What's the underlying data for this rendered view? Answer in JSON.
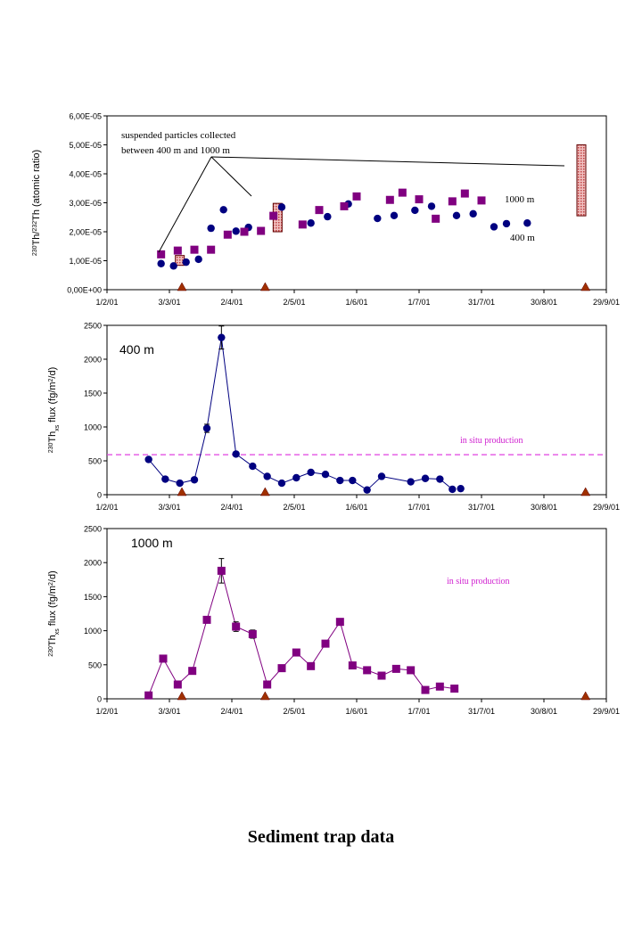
{
  "caption": "Sediment trap data",
  "chart_data": [
    {
      "type": "line",
      "ylabel_prefix": "230",
      "ylabel_main1": "Th/",
      "ylabel_sup2": "232",
      "ylabel_main2": "Th (atomic ratio)",
      "yticks": [
        "0,00E+00",
        "1,00E-05",
        "2,00E-05",
        "3,00E-05",
        "4,00E-05",
        "5,00E-05",
        "6,00E-05"
      ],
      "ylim": [
        0,
        6e-05
      ],
      "xticks": [
        "1/2/01",
        "3/3/01",
        "2/4/01",
        "2/5/01",
        "1/6/01",
        "1/7/01",
        "31/7/01",
        "30/8/01",
        "29/9/01"
      ],
      "annotation_line1": "suspended particles collected",
      "annotation_line2": "between 400 m and 1000 m",
      "label_1000": "1000 m",
      "label_400": "400 m",
      "series": [
        {
          "name": "400 m",
          "color": "#000080",
          "marker": "circle",
          "x": [
            26,
            32,
            38,
            44,
            50,
            56,
            62,
            68,
            84,
            98,
            106,
            116,
            130,
            138,
            148,
            156,
            168,
            176,
            186,
            192,
            202
          ],
          "y": [
            9e-06,
            8.2e-06,
            9.5e-06,
            1.05e-05,
            2.12e-05,
            2.76e-05,
            2.02e-05,
            2.15e-05,
            2.85e-05,
            2.3e-05,
            2.52e-05,
            2.96e-05,
            2.46e-05,
            2.56e-05,
            2.74e-05,
            2.88e-05,
            2.56e-05,
            2.62e-05,
            2.17e-05,
            2.28e-05,
            2.3e-05
          ]
        },
        {
          "name": "1000 m",
          "color": "#800080",
          "marker": "square",
          "x": [
            26,
            34,
            42,
            50,
            58,
            66,
            74,
            80,
            94,
            102,
            114,
            120,
            136,
            142,
            150,
            158,
            166,
            172,
            180
          ],
          "y": [
            1.22e-05,
            1.35e-05,
            1.38e-05,
            1.38e-05,
            1.9e-05,
            2e-05,
            2.03e-05,
            2.55e-05,
            2.25e-05,
            2.75e-05,
            2.88e-05,
            3.22e-05,
            3.1e-05,
            3.35e-05,
            3.12e-05,
            2.45e-05,
            3.05e-05,
            3.32e-05,
            3.08e-05
          ]
        }
      ],
      "suspended_bars": [
        {
          "x": 35,
          "y0": 8.4e-06,
          "y1": 1.18e-05
        },
        {
          "x": 82,
          "y0": 2e-05,
          "y1": 2.98e-05
        },
        {
          "x": 228,
          "y0": 2.55e-05,
          "y1": 5e-05
        }
      ],
      "triangles_x": [
        36,
        76,
        230
      ]
    },
    {
      "type": "line",
      "title": "400 m",
      "ylabel_main1": "230",
      "ylabel_main2": "Th",
      "ylabel_sub": "xs",
      "ylabel_main3": " flux (fg/m",
      "ylabel_sup": "2",
      "ylabel_main4": "/d)",
      "yticks": [
        "0",
        "500",
        "1000",
        "1500",
        "2000",
        "2500"
      ],
      "ylim": [
        0,
        2500
      ],
      "xticks": [
        "1/2/01",
        "3/3/01",
        "2/4/01",
        "2/5/01",
        "1/6/01",
        "1/7/01",
        "31/7/01",
        "30/8/01",
        "29/9/01"
      ],
      "ref_label": "in situ production",
      "ref_value": 590,
      "series": [
        {
          "name": "400 m",
          "color": "#000080",
          "marker": "circle",
          "x": [
            20,
            28,
            35,
            42,
            48,
            55,
            62,
            70,
            77,
            84,
            91,
            98,
            105,
            112,
            118,
            125,
            132,
            146,
            153,
            160,
            166
          ],
          "y": [
            520,
            230,
            170,
            220,
            980,
            2320,
            600,
            420,
            270,
            170,
            250,
            330,
            300,
            210,
            210,
            70,
            270,
            190,
            240,
            230,
            80
          ],
          "err": [
            0,
            0,
            0,
            0,
            60,
            170,
            0,
            0,
            0,
            0,
            0,
            0,
            0,
            0,
            0,
            0,
            0,
            0,
            0,
            0,
            0
          ]
        }
      ],
      "extra_points": [
        {
          "x": 170,
          "y": 90
        }
      ],
      "triangles_x": [
        36,
        76,
        230
      ]
    },
    {
      "type": "line",
      "title": "1000 m",
      "ylabel_main1": "230",
      "ylabel_main2": "Th",
      "ylabel_sub": "xs",
      "ylabel_main3": " flux (fg/m",
      "ylabel_sup": "2",
      "ylabel_main4": "/d)",
      "yticks": [
        "0",
        "500",
        "1000",
        "1500",
        "2000",
        "2500"
      ],
      "ylim": [
        0,
        2500
      ],
      "xticks": [
        "1/2/01",
        "3/3/01",
        "2/4/01",
        "2/5/01",
        "1/6/01",
        "1/7/01",
        "31/7/01",
        "30/8/01",
        "29/9/01"
      ],
      "ref_label": "in situ production",
      "series": [
        {
          "name": "1000 m",
          "color": "#800080",
          "marker": "square",
          "x": [
            20,
            27,
            34,
            41,
            48,
            55,
            62,
            70,
            77,
            84,
            91,
            98,
            105,
            112,
            118,
            125,
            132,
            139,
            146,
            153,
            160,
            167
          ],
          "y": [
            50,
            590,
            210,
            410,
            1160,
            1880,
            1060,
            950,
            210,
            450,
            680,
            480,
            810,
            1130,
            490,
            420,
            340,
            440,
            420,
            130,
            180,
            150
          ],
          "err": [
            0,
            0,
            0,
            0,
            0,
            180,
            70,
            60,
            0,
            0,
            0,
            0,
            0,
            0,
            0,
            0,
            0,
            0,
            0,
            0,
            0,
            0
          ]
        }
      ],
      "triangles_x": [
        36,
        76,
        230
      ]
    }
  ]
}
